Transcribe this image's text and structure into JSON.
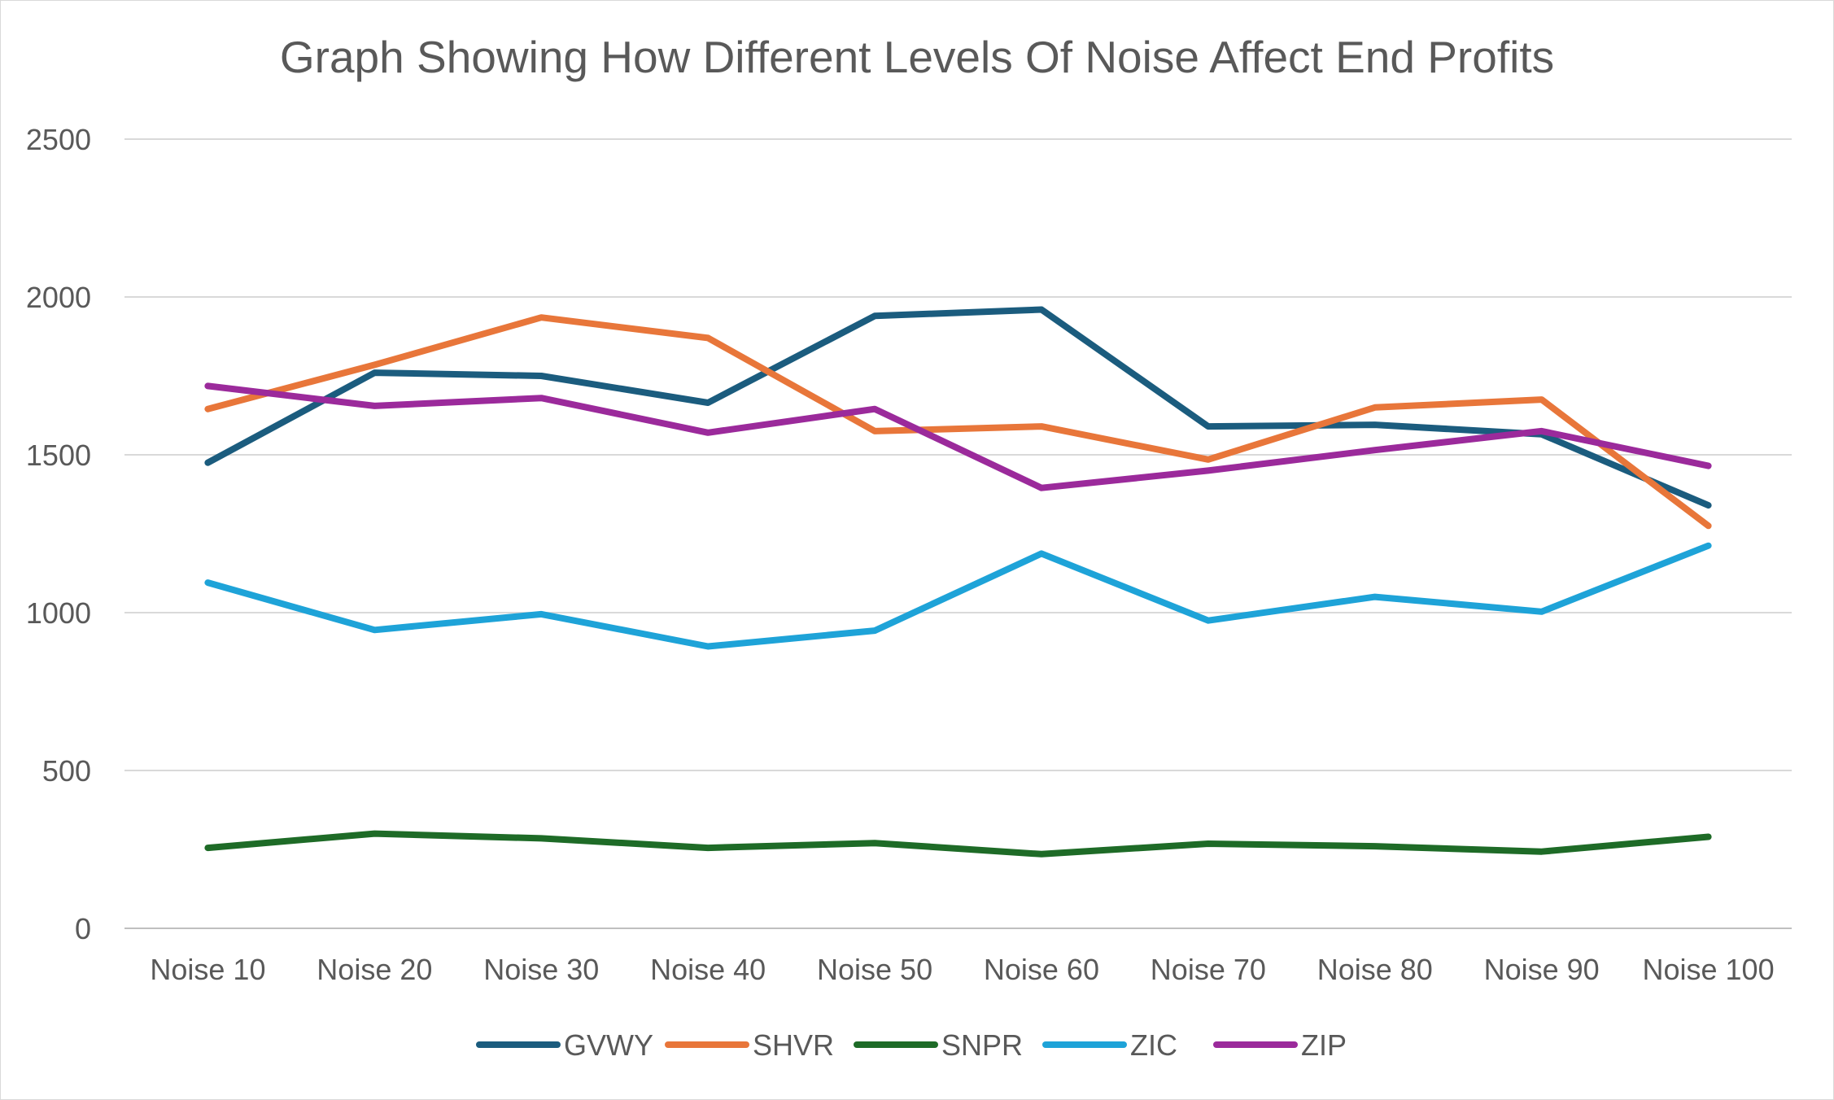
{
  "chart_data": {
    "type": "line",
    "title": "Graph Showing How Different Levels Of Noise Affect End Profits",
    "xlabel": "",
    "ylabel": "",
    "categories": [
      "Noise 10",
      "Noise 20",
      "Noise 30",
      "Noise 40",
      "Noise 50",
      "Noise 60",
      "Noise 70",
      "Noise 80",
      "Noise 90",
      "Noise 100"
    ],
    "ylim": [
      0,
      2500
    ],
    "yticks": [
      "0",
      "500",
      "1000",
      "1500",
      "2000",
      "2500"
    ],
    "grid": true,
    "legend_position": "bottom",
    "series": [
      {
        "name": "GVWY",
        "color": "#1b5c7e",
        "values": [
          1475,
          1760,
          1750,
          1665,
          1940,
          1960,
          1590,
          1595,
          1565,
          1340
        ]
      },
      {
        "name": "SHVR",
        "color": "#e8763a",
        "values": [
          1645,
          1785,
          1935,
          1870,
          1575,
          1590,
          1485,
          1650,
          1675,
          1275
        ]
      },
      {
        "name": "SNPR",
        "color": "#1e6b27",
        "values": [
          255,
          300,
          285,
          255,
          270,
          235,
          268,
          260,
          243,
          290
        ]
      },
      {
        "name": "ZIC",
        "color": "#1ea3d8",
        "values": [
          1095,
          945,
          995,
          893,
          943,
          1187,
          975,
          1050,
          1003,
          1212
        ]
      },
      {
        "name": "ZIP",
        "color": "#9b2a9b",
        "values": [
          1718,
          1655,
          1680,
          1570,
          1645,
          1395,
          1450,
          1515,
          1575,
          1465
        ]
      }
    ]
  }
}
